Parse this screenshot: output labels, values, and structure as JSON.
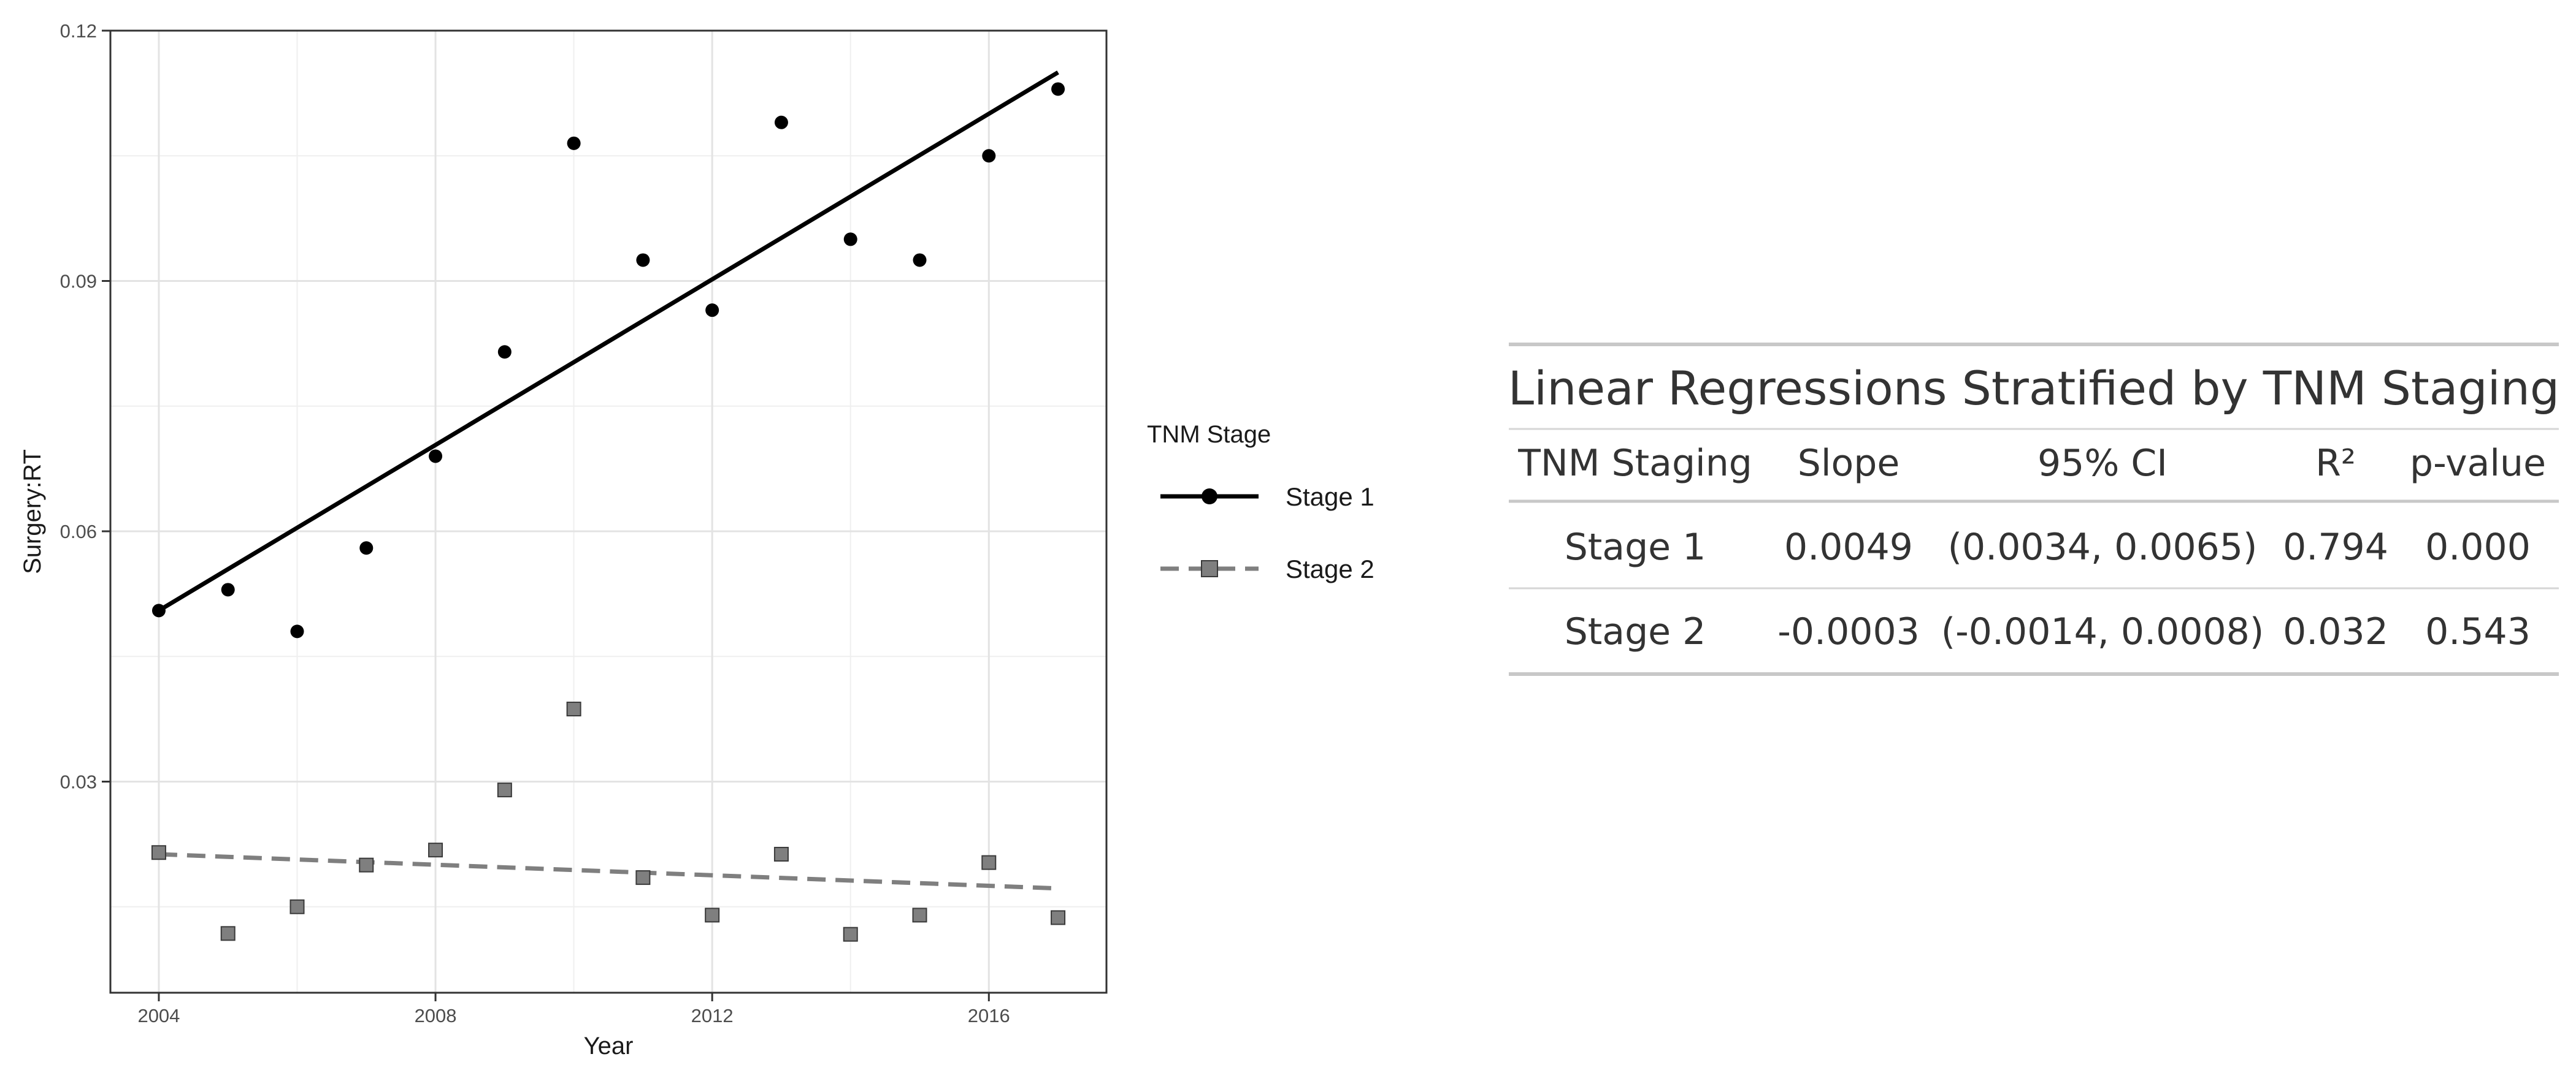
{
  "chart_data": {
    "type": "scatter",
    "xlabel": "Year",
    "ylabel": "Surgery:RT",
    "xlim": [
      2003.3,
      2017.7
    ],
    "ylim": [
      0.0047,
      0.12
    ],
    "x_ticks": [
      2004,
      2008,
      2012,
      2016
    ],
    "x_tick_labels": [
      "2004",
      "2008",
      "2012",
      "2016"
    ],
    "y_ticks": [
      0.03,
      0.06,
      0.09,
      0.12
    ],
    "y_tick_labels": [
      "0.03",
      "0.06",
      "0.09",
      "0.12"
    ],
    "grid": true,
    "legend": {
      "title": "TNM Stage",
      "position": "right"
    },
    "x": [
      2004,
      2005,
      2006,
      2007,
      2008,
      2009,
      2010,
      2011,
      2012,
      2013,
      2014,
      2015,
      2016,
      2017
    ],
    "series": [
      {
        "name": "Stage 1",
        "marker": "circle",
        "line": "solid",
        "color": "#000000",
        "values": [
          0.0505,
          0.053,
          0.048,
          0.058,
          0.069,
          0.0815,
          0.1065,
          0.0925,
          0.0865,
          0.109,
          0.095,
          0.0925,
          0.105,
          0.113
        ],
        "fit": [
          0.0505,
          0.115
        ]
      },
      {
        "name": "Stage 2",
        "marker": "square",
        "line": "dashed",
        "color": "#7f7f7f",
        "values": [
          0.0215,
          0.0118,
          0.015,
          0.02,
          0.0218,
          0.029,
          0.0387,
          0.0185,
          0.014,
          0.0213,
          0.0117,
          0.014,
          0.0203,
          0.0137
        ],
        "fit": [
          0.0213,
          0.0172
        ]
      }
    ]
  },
  "table": {
    "title": "Linear Regressions Stratified by TNM Staging",
    "headers": [
      "TNM Staging",
      "Slope",
      "95% CI",
      "R²",
      "p-value"
    ],
    "rows": [
      [
        "Stage 1",
        "0.0049",
        "(0.0034, 0.0065)",
        "0.794",
        "0.000"
      ],
      [
        "Stage 2",
        "-0.0003",
        "(-0.0014, 0.0008)",
        "0.032",
        "0.543"
      ]
    ]
  }
}
